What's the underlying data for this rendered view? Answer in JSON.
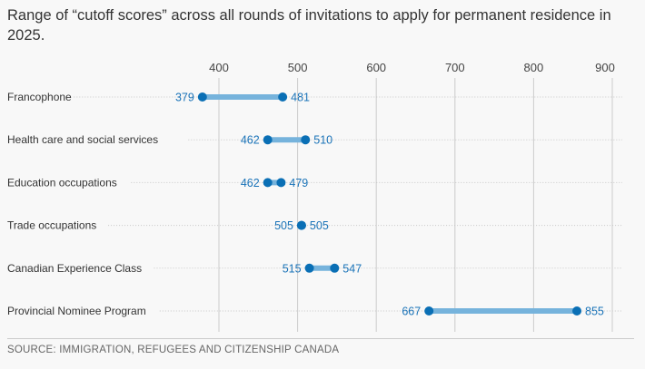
{
  "chart_data": {
    "type": "dumbbell",
    "title": "Range of “cutoff scores” across all rounds of invitations to apply for permanent residence in 2025.",
    "source": "SOURCE: IMMIGRATION, REFUGEES AND CITIZENSHIP CANADA",
    "xticks": [
      400,
      500,
      600,
      700,
      800,
      900
    ],
    "xlim": [
      400,
      900
    ],
    "grid": true,
    "categories": [
      "Francophone",
      "Health care and social services",
      "Education occupations",
      "Trade occupations",
      "Canadian Experience Class",
      "Provincial Nominee Program"
    ],
    "min": [
      379,
      462,
      462,
      505,
      515,
      667
    ],
    "max": [
      481,
      510,
      479,
      505,
      547,
      855
    ],
    "colors": {
      "dot": "#0a6fb5",
      "bar": "#76b3dc",
      "label": "#1a73b8",
      "grid": "#cccccc"
    }
  }
}
